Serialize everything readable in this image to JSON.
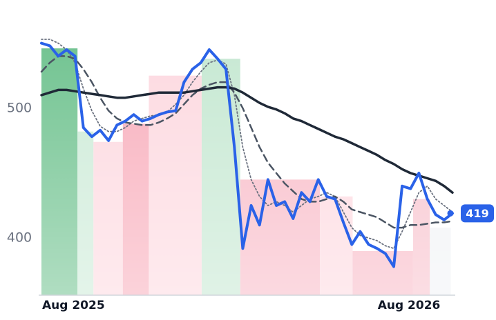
{
  "chart_data": {
    "type": "line",
    "categories": [
      "Aug 2025",
      null,
      null,
      null,
      null,
      null,
      null,
      null,
      null,
      null,
      null,
      null,
      null,
      null,
      null,
      null,
      null,
      null,
      null,
      null,
      null,
      null,
      null,
      null,
      null,
      null,
      null,
      null,
      null,
      null,
      null,
      null,
      null,
      null,
      null,
      null,
      null,
      null,
      null,
      null,
      "Aug 2026",
      null,
      null,
      null,
      null,
      null,
      null,
      null,
      null,
      null
    ],
    "ylim": [
      356,
      562
    ],
    "yticks": [
      400,
      500
    ],
    "series": [
      {
        "color": "#2a62e8",
        "style": "solid",
        "width": 4,
        "values": [
          550,
          548,
          540,
          545,
          540,
          485,
          478,
          483,
          475,
          487,
          490,
          495,
          490,
          492,
          495,
          497,
          498,
          520,
          530,
          535,
          545,
          538,
          530,
          470,
          392,
          425,
          410,
          445,
          425,
          428,
          415,
          435,
          428,
          445,
          432,
          430,
          412,
          395,
          405,
          395,
          392,
          388,
          378,
          440,
          438,
          450,
          430,
          418,
          414,
          419
        ]
      },
      {
        "color": "#1f2937",
        "style": "solid",
        "width": 3.5,
        "values": [
          510,
          512,
          514,
          514,
          513,
          512,
          511,
          510,
          509,
          508,
          508,
          509,
          510,
          511,
          512,
          512,
          512,
          512,
          513,
          514,
          515,
          516,
          516,
          515,
          512,
          508,
          504,
          501,
          499,
          496,
          492,
          490,
          487,
          484,
          481,
          478,
          476,
          473,
          470,
          467,
          464,
          460,
          457,
          453,
          450,
          448,
          446,
          444,
          440,
          435
        ]
      },
      {
        "color": "#4b5563",
        "style": "dashed",
        "width": 2.5,
        "values": [
          528,
          535,
          540,
          540,
          538,
          530,
          520,
          508,
          498,
          492,
          489,
          488,
          487,
          487,
          489,
          492,
          496,
          503,
          510,
          515,
          518,
          520,
          520,
          512,
          500,
          485,
          470,
          458,
          450,
          442,
          436,
          430,
          428,
          428,
          430,
          432,
          428,
          422,
          420,
          418,
          416,
          412,
          408,
          408,
          410,
          410,
          411,
          412,
          412,
          413
        ]
      },
      {
        "color": "#6b7280",
        "style": "dotted",
        "width": 1.8,
        "values": [
          553,
          553,
          550,
          545,
          535,
          515,
          498,
          486,
          482,
          482,
          485,
          490,
          492,
          494,
          495,
          497,
          503,
          510,
          520,
          528,
          535,
          537,
          534,
          510,
          470,
          445,
          432,
          425,
          428,
          425,
          420,
          425,
          430,
          432,
          435,
          432,
          420,
          408,
          402,
          400,
          398,
          394,
          392,
          405,
          420,
          435,
          440,
          430,
          425,
          420
        ]
      }
    ],
    "regions": [
      {
        "from": 0,
        "to": 4.3,
        "top": 546,
        "color": "#6fc28f"
      },
      {
        "from": 4.3,
        "to": 6.2,
        "top": 482,
        "color": "#cdebd8"
      },
      {
        "from": 6.2,
        "to": 9.7,
        "top": 474,
        "color": "#fdd9e0"
      },
      {
        "from": 9.7,
        "to": 12.8,
        "top": 488,
        "color": "#f8aebc"
      },
      {
        "from": 12.8,
        "to": 19.1,
        "top": 525,
        "color": "#fdd9e0"
      },
      {
        "from": 19.1,
        "to": 23.7,
        "top": 538,
        "color": "#c6e8d2"
      },
      {
        "from": 23.7,
        "to": 33.2,
        "top": 445,
        "color": "#f8bac7"
      },
      {
        "from": 33.2,
        "to": 37.1,
        "top": 432,
        "color": "#fdd9e0"
      },
      {
        "from": 37.1,
        "to": 44.3,
        "top": 390,
        "color": "#f8bac7"
      },
      {
        "from": 44.3,
        "to": 46.3,
        "top": 430,
        "color": "#f8c2cd"
      },
      {
        "from": 46.3,
        "to": 48.8,
        "top": 408,
        "color": "#f1f3f6"
      }
    ]
  }
}
